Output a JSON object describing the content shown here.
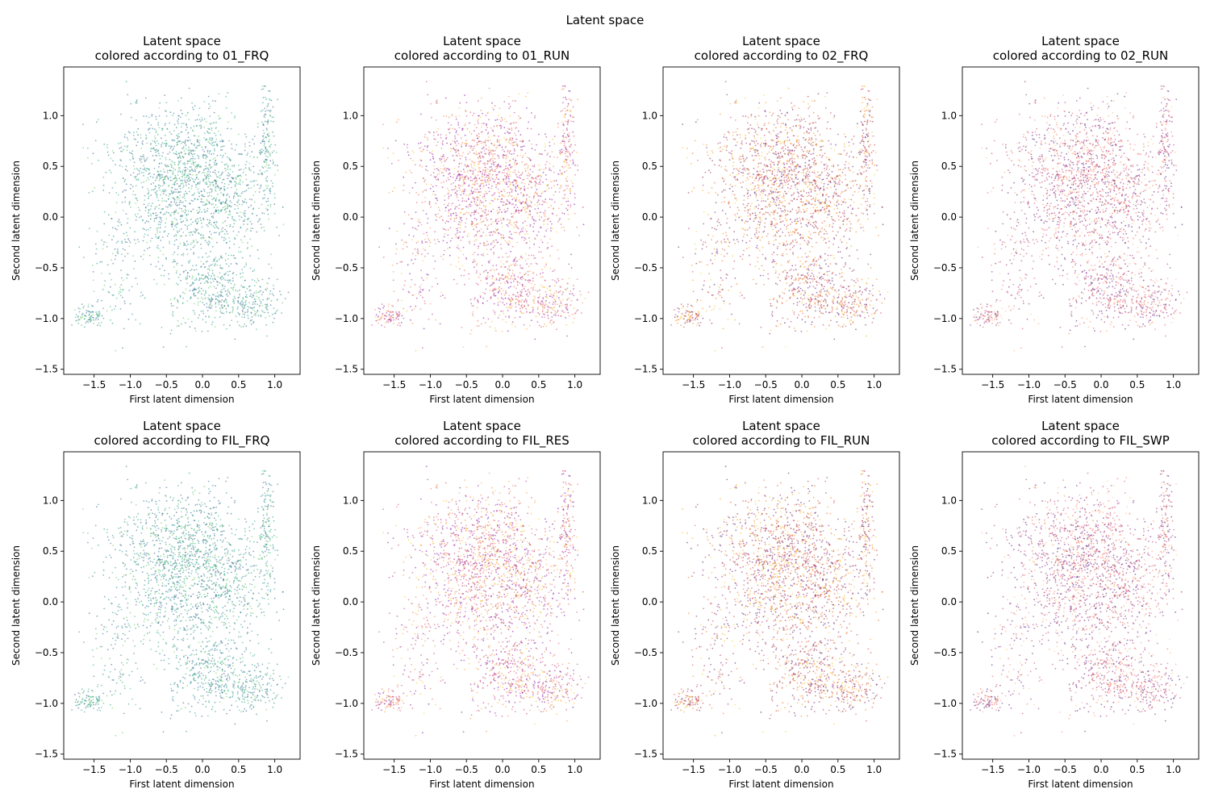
{
  "figure": {
    "suptitle": "Latent space"
  },
  "chart_data": [
    {
      "type": "scatter",
      "title": "Latent space",
      "subtitle": "colored according to 01_FRQ",
      "xlabel": "First latent dimension",
      "ylabel": "Second latent dimension",
      "colormap": "viridis",
      "xlim": [
        -1.92,
        1.35
      ],
      "ylim": [
        -1.55,
        1.48
      ],
      "xticks": [
        "-1.5",
        "-1.0",
        "-0.5",
        "0.0",
        "0.5",
        "1.0"
      ],
      "yticks": [
        "-1.5",
        "-1.0",
        "-0.5",
        "0.0",
        "0.5",
        "1.0"
      ],
      "point_color_range": [
        "#440154",
        "#fde725"
      ],
      "dominant_color": "#2a8a73"
    },
    {
      "type": "scatter",
      "title": "Latent space",
      "subtitle": "colored according to 01_RUN",
      "xlabel": "First latent dimension",
      "ylabel": "Second latent dimension",
      "colormap": "plasma",
      "xlim": [
        -1.92,
        1.35
      ],
      "ylim": [
        -1.55,
        1.48
      ],
      "xticks": [
        "-1.5",
        "-1.0",
        "-0.5",
        "0.0",
        "0.5",
        "1.0"
      ],
      "yticks": [
        "-1.5",
        "-1.0",
        "-0.5",
        "0.0",
        "0.5",
        "1.0"
      ],
      "point_color_range": [
        "#0d0887",
        "#f0f921"
      ],
      "dominant_color": "#b73779"
    },
    {
      "type": "scatter",
      "title": "Latent space",
      "subtitle": "colored according to 02_FRQ",
      "xlabel": "First latent dimension",
      "ylabel": "Second latent dimension",
      "colormap": "inferno",
      "xlim": [
        -1.92,
        1.35
      ],
      "ylim": [
        -1.55,
        1.48
      ],
      "xticks": [
        "-1.5",
        "-1.0",
        "-0.5",
        "0.0",
        "0.5",
        "1.0"
      ],
      "yticks": [
        "-1.5",
        "-1.0",
        "-0.5",
        "0.0",
        "0.5",
        "1.0"
      ],
      "point_color_range": [
        "#000004",
        "#fcffa4"
      ],
      "dominant_color": "#b5431f"
    },
    {
      "type": "scatter",
      "title": "Latent space",
      "subtitle": "colored according to 02_RUN",
      "xlabel": "First latent dimension",
      "ylabel": "Second latent dimension",
      "colormap": "magma",
      "xlim": [
        -1.92,
        1.35
      ],
      "ylim": [
        -1.55,
        1.48
      ],
      "xticks": [
        "-1.5",
        "-1.0",
        "-0.5",
        "0.0",
        "0.5",
        "1.0"
      ],
      "yticks": [
        "-1.5",
        "-1.0",
        "-0.5",
        "0.0",
        "0.5",
        "1.0"
      ],
      "point_color_range": [
        "#000004",
        "#fcfdbf"
      ],
      "dominant_color": "#8c2a5a"
    },
    {
      "type": "scatter",
      "title": "Latent space",
      "subtitle": "colored according to FIL_FRQ",
      "xlabel": "First latent dimension",
      "ylabel": "Second latent dimension",
      "colormap": "viridis",
      "xlim": [
        -1.92,
        1.35
      ],
      "ylim": [
        -1.55,
        1.48
      ],
      "xticks": [
        "-1.5",
        "-1.0",
        "-0.5",
        "0.0",
        "0.5",
        "1.0"
      ],
      "yticks": [
        "-1.5",
        "-1.0",
        "-0.5",
        "0.0",
        "0.5",
        "1.0"
      ],
      "point_color_range": [
        "#440154",
        "#fde725"
      ],
      "dominant_color": "#2a8a73"
    },
    {
      "type": "scatter",
      "title": "Latent space",
      "subtitle": "colored according to FIL_RES",
      "xlabel": "First latent dimension",
      "ylabel": "Second latent dimension",
      "colormap": "plasma",
      "xlim": [
        -1.92,
        1.35
      ],
      "ylim": [
        -1.55,
        1.48
      ],
      "xticks": [
        "-1.5",
        "-1.0",
        "-0.5",
        "0.0",
        "0.5",
        "1.0"
      ],
      "yticks": [
        "-1.5",
        "-1.0",
        "-0.5",
        "0.0",
        "0.5",
        "1.0"
      ],
      "point_color_range": [
        "#0d0887",
        "#f0f921"
      ],
      "dominant_color": "#b73779"
    },
    {
      "type": "scatter",
      "title": "Latent space",
      "subtitle": "colored according to FIL_RUN",
      "xlabel": "First latent dimension",
      "ylabel": "Second latent dimension",
      "colormap": "inferno",
      "xlim": [
        -1.92,
        1.35
      ],
      "ylim": [
        -1.55,
        1.48
      ],
      "xticks": [
        "-1.5",
        "-1.0",
        "-0.5",
        "0.0",
        "0.5",
        "1.0"
      ],
      "yticks": [
        "-1.5",
        "-1.0",
        "-0.5",
        "0.0",
        "0.5",
        "1.0"
      ],
      "point_color_range": [
        "#000004",
        "#fcffa4"
      ],
      "dominant_color": "#b5431f"
    },
    {
      "type": "scatter",
      "title": "Latent space",
      "subtitle": "colored according to FIL_SWP",
      "xlabel": "First latent dimension",
      "ylabel": "Second latent dimension",
      "colormap": "magma",
      "xlim": [
        -1.92,
        1.35
      ],
      "ylim": [
        -1.55,
        1.48
      ],
      "xticks": [
        "-1.5",
        "-1.0",
        "-0.5",
        "0.0",
        "0.5",
        "1.0"
      ],
      "yticks": [
        "-1.5",
        "-1.0",
        "-0.5",
        "0.0",
        "0.5",
        "1.0"
      ],
      "point_color_range": [
        "#000004",
        "#fcfdbf"
      ],
      "dominant_color": "#8c2a5a"
    }
  ]
}
